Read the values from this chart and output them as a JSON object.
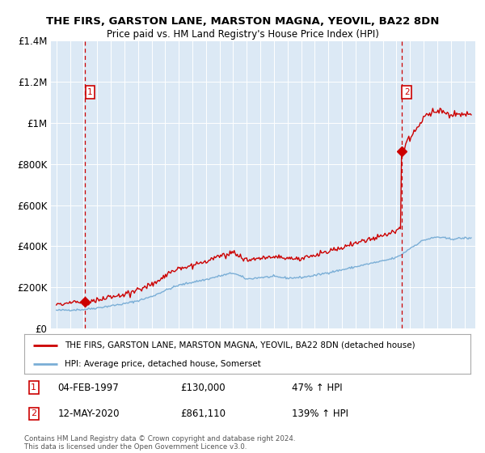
{
  "title1": "THE FIRS, GARSTON LANE, MARSTON MAGNA, YEOVIL, BA22 8DN",
  "title2": "Price paid vs. HM Land Registry's House Price Index (HPI)",
  "plot_bg_color": "#dce9f5",
  "red_color": "#cc0000",
  "blue_color": "#7aaed6",
  "marker1_year": 1997.09,
  "marker1_value": 130000,
  "marker2_year": 2020.37,
  "marker2_value": 861110,
  "xlim_left": 1994.6,
  "xlim_right": 2025.8,
  "ylim_bottom": 0,
  "ylim_top": 1400000,
  "yticks": [
    0,
    200000,
    400000,
    600000,
    800000,
    1000000,
    1200000,
    1400000
  ],
  "ytick_labels": [
    "£0",
    "£200K",
    "£400K",
    "£600K",
    "£800K",
    "£1M",
    "£1.2M",
    "£1.4M"
  ],
  "xticks": [
    1995,
    1996,
    1997,
    1998,
    1999,
    2000,
    2001,
    2002,
    2003,
    2004,
    2005,
    2006,
    2007,
    2008,
    2009,
    2010,
    2011,
    2012,
    2013,
    2014,
    2015,
    2016,
    2017,
    2018,
    2019,
    2020,
    2021,
    2022,
    2023,
    2024,
    2025
  ],
  "legend_line1": "THE FIRS, GARSTON LANE, MARSTON MAGNA, YEOVIL, BA22 8DN (detached house)",
  "legend_line2": "HPI: Average price, detached house, Somerset",
  "label1_num": "1",
  "label1_date": "04-FEB-1997",
  "label1_price": "£130,000",
  "label1_hpi": "47% ↑ HPI",
  "label2_num": "2",
  "label2_date": "12-MAY-2020",
  "label2_price": "£861,110",
  "label2_hpi": "139% ↑ HPI",
  "footnote": "Contains HM Land Registry data © Crown copyright and database right 2024.\nThis data is licensed under the Open Government Licence v3.0."
}
